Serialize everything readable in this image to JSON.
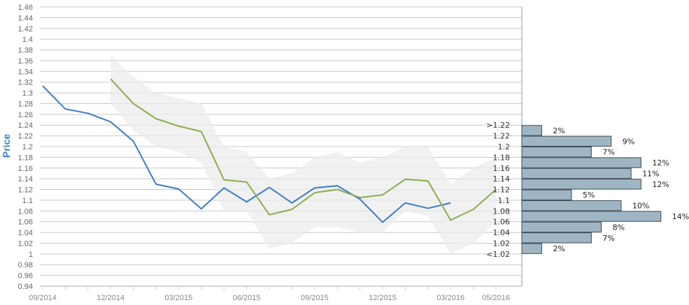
{
  "chart_data": {
    "type": "line",
    "ylabel": "Price",
    "ylim": [
      0.94,
      1.46
    ],
    "yticks": [
      "1.46",
      "1.44",
      "1.42",
      "1.4",
      "1.38",
      "1.36",
      "1.34",
      "1.32",
      "1.3",
      "1.28",
      "1.26",
      "1.24",
      "1.22",
      "1.2",
      "1.18",
      "1.16",
      "1.14",
      "1.12",
      "1.1",
      "1.08",
      "1.06",
      "1.04",
      "1.02",
      "1",
      "0.98",
      "0.96",
      "0.94"
    ],
    "xticks": [
      "09/2014",
      "12/2014",
      "03/2015",
      "06/2015",
      "09/2015",
      "12/2015",
      "03/2016",
      "05/2016"
    ],
    "colors": {
      "actual": "#3a7dc9",
      "forecast": "#8aad4a",
      "band": "#e6e6e6",
      "bars": "#9fb5c3",
      "bar_border": "#3d4a55"
    },
    "series": [
      {
        "role": "actual",
        "x": [
          "09/2014",
          "10/2014",
          "11/2014",
          "12/2014",
          "01/2015",
          "02/2015",
          "03/2015",
          "04/2015",
          "05/2015",
          "06/2015",
          "07/2015",
          "08/2015",
          "09/2015",
          "10/2015",
          "11/2015",
          "12/2015",
          "01/2016",
          "02/2016",
          "03/2016"
        ],
        "values": [
          1.313,
          1.27,
          1.262,
          1.246,
          1.21,
          1.13,
          1.121,
          1.084,
          1.123,
          1.097,
          1.124,
          1.095,
          1.123,
          1.127,
          1.102,
          1.059,
          1.095,
          1.085,
          1.095
        ]
      },
      {
        "role": "forecast",
        "x": [
          "12/2014",
          "01/2015",
          "02/2015",
          "03/2015",
          "04/2015",
          "05/2015",
          "06/2015",
          "07/2015",
          "08/2015",
          "09/2015",
          "10/2015",
          "11/2015",
          "12/2015",
          "01/2016",
          "02/2016",
          "03/2016",
          "04/2016",
          "05/2016"
        ],
        "values": [
          1.326,
          1.28,
          1.252,
          1.238,
          1.228,
          1.138,
          1.134,
          1.073,
          1.083,
          1.114,
          1.12,
          1.105,
          1.11,
          1.139,
          1.136,
          1.063,
          1.083,
          1.12
        ]
      }
    ],
    "band": {
      "x": [
        "12/2014",
        "01/2015",
        "02/2015",
        "03/2015",
        "04/2015",
        "05/2015",
        "06/2015",
        "07/2015",
        "08/2015",
        "09/2015",
        "10/2015",
        "11/2015",
        "12/2015",
        "01/2016",
        "02/2016",
        "03/2016",
        "04/2016",
        "05/2016"
      ],
      "upper": [
        1.37,
        1.33,
        1.3,
        1.29,
        1.28,
        1.2,
        1.19,
        1.14,
        1.15,
        1.18,
        1.19,
        1.17,
        1.18,
        1.2,
        1.2,
        1.13,
        1.16,
        1.18
      ],
      "lower": [
        1.28,
        1.23,
        1.2,
        1.19,
        1.17,
        1.08,
        1.08,
        1.01,
        1.02,
        1.05,
        1.05,
        1.04,
        1.04,
        1.08,
        1.07,
        1.0,
        1.02,
        1.06
      ]
    },
    "histogram": {
      "bins": [
        ">1.22",
        "1.22",
        "1.2",
        "1.18",
        "1.16",
        "1.14",
        "1.12",
        "1.1",
        "1.08",
        "1.06",
        "1.04",
        "1.02",
        "<1.02"
      ],
      "labels": [
        "2%",
        "9%",
        "7%",
        "12%",
        "11%",
        "12%",
        "5%",
        "10%",
        "14%",
        "8%",
        "7%",
        "2%"
      ],
      "values": [
        2,
        9,
        7,
        12,
        11,
        12,
        5,
        10,
        14,
        8,
        7,
        2
      ]
    }
  }
}
